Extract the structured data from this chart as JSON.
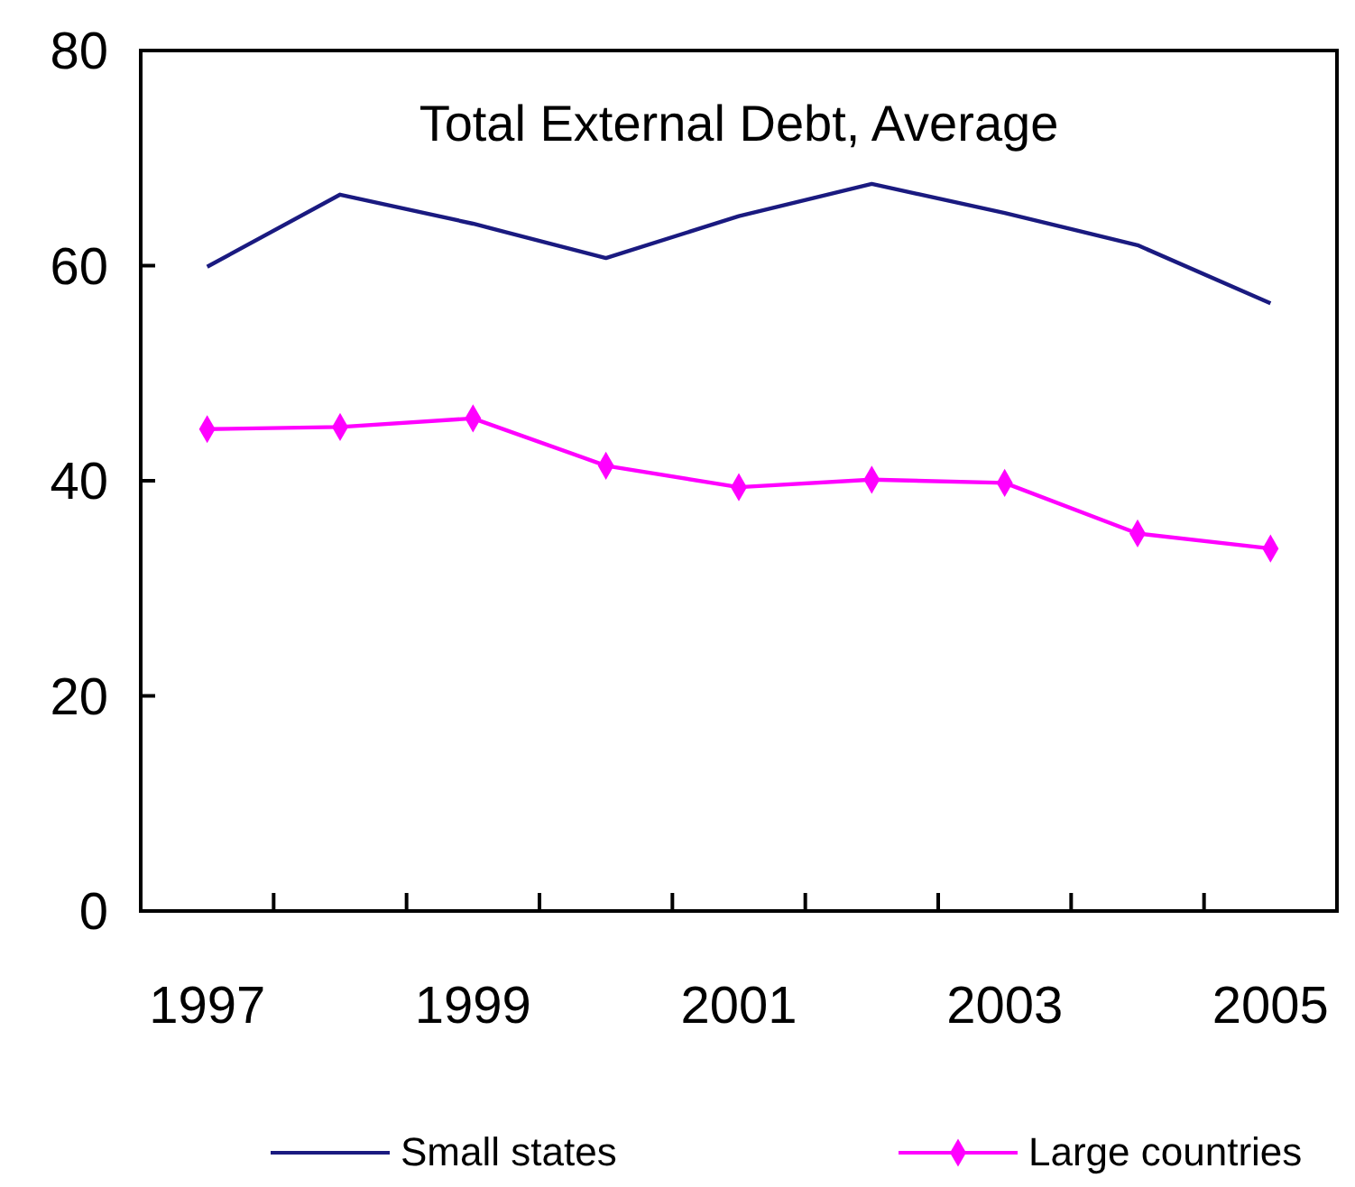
{
  "chart_data": {
    "type": "line",
    "title": "Total External Debt, Average",
    "categories": [
      "1997",
      null,
      "1999",
      null,
      "2001",
      null,
      "2003",
      null,
      "2005"
    ],
    "series": [
      {
        "name": "Small states",
        "color": "#1a1a80",
        "marker": "none",
        "values": [
          59.9,
          66.6,
          63.9,
          60.7,
          64.6,
          67.6,
          64.9,
          61.9,
          56.5
        ]
      },
      {
        "name": "Large countries",
        "color": "#ff00ff",
        "marker": "diamond",
        "values": [
          44.8,
          45.0,
          45.8,
          41.4,
          39.4,
          40.1,
          39.8,
          35.1,
          33.7
        ]
      }
    ],
    "ylim": [
      0,
      80
    ],
    "yticks": [
      0,
      20,
      40,
      60,
      80
    ],
    "legend": "bottom"
  }
}
